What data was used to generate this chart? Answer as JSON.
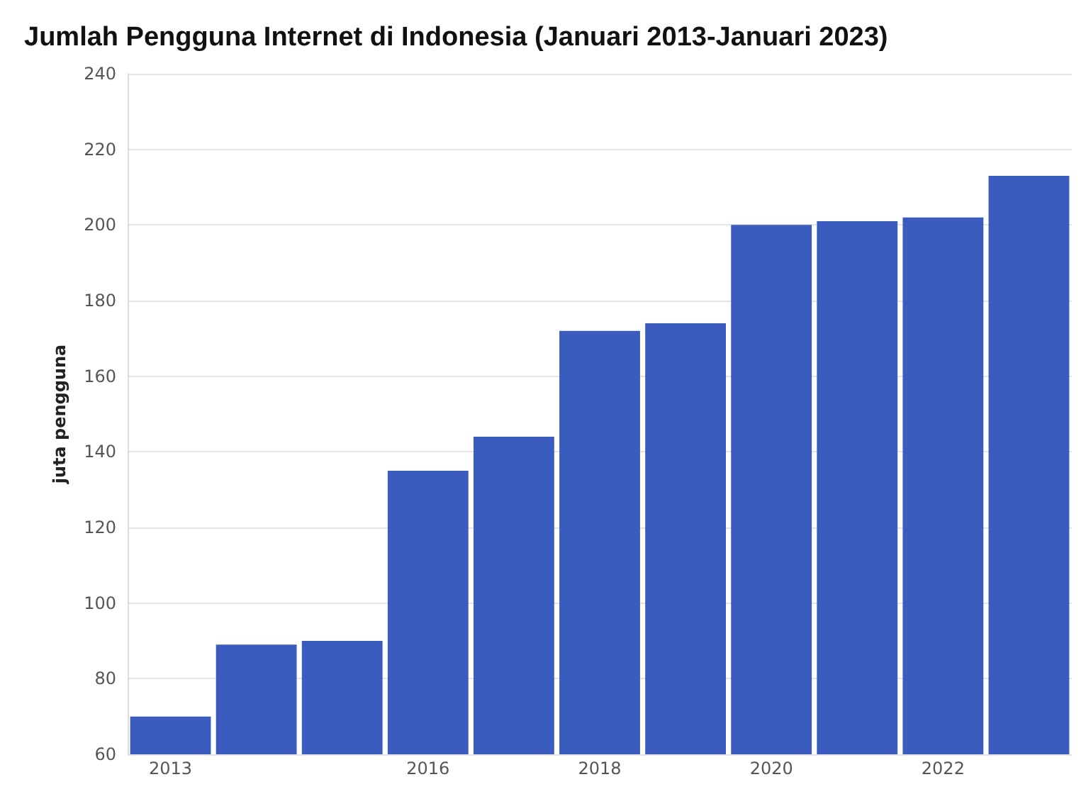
{
  "chart_data": {
    "type": "bar",
    "title": "Jumlah Pengguna Internet di Indonesia (Januari 2013-Januari 2023)",
    "ylabel": "juta pengguna",
    "categories": [
      "2013",
      null,
      null,
      "2016",
      null,
      "2018",
      null,
      "2020",
      null,
      "2022",
      null
    ],
    "values": [
      70,
      89,
      90,
      135,
      144,
      172,
      174,
      200,
      201,
      202,
      213
    ],
    "color": "#3b5cbf",
    "ylim": [
      60,
      240
    ],
    "yticks": [
      60,
      80,
      100,
      120,
      140,
      160,
      180,
      200,
      220,
      240
    ],
    "grid": "y"
  }
}
